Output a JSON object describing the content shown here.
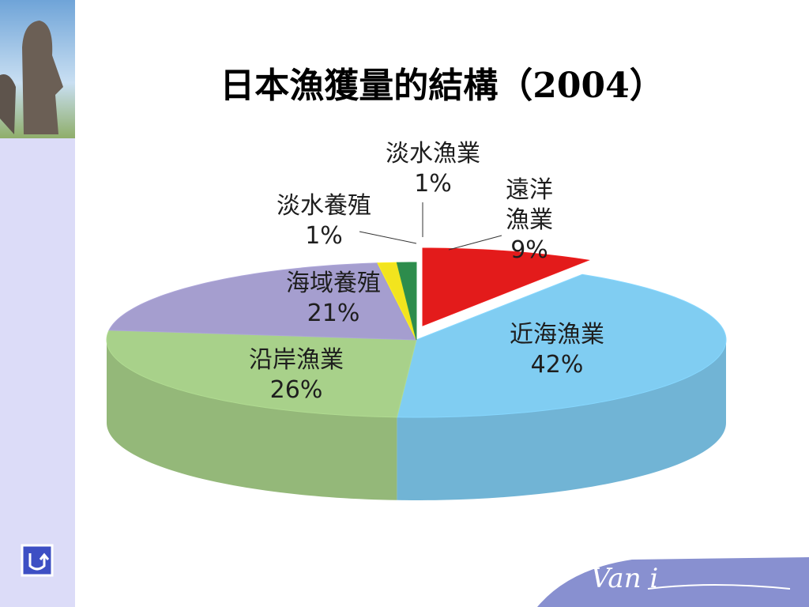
{
  "chart_data": {
    "type": "pie",
    "title": "日本漁獲量的結構（2004）",
    "categories": [
      "遠洋漁業",
      "近海漁業",
      "沿岸漁業",
      "海域養殖",
      "淡水養殖",
      "淡水漁業"
    ],
    "values": [
      9,
      42,
      26,
      21,
      1,
      1
    ],
    "value_labels": [
      "9%",
      "42%",
      "26%",
      "21%",
      "1%",
      "1%"
    ],
    "colors": [
      "#e31b1b",
      "#80cdf2",
      "#a8d18a",
      "#a59ecf",
      "#f2e41e",
      "#2d8c4c"
    ]
  },
  "logo": "Van i"
}
